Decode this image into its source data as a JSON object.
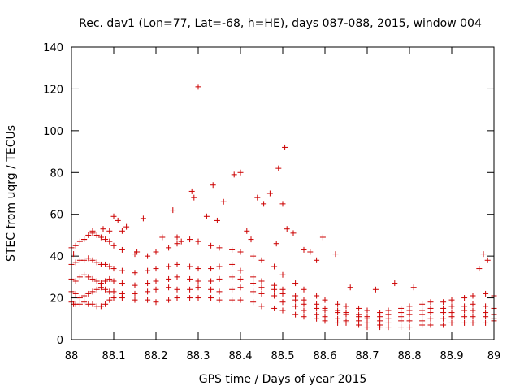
{
  "chart_data": {
    "type": "scatter",
    "title": "Rec. dav1 (Lon=77, Lat=-68, h=HE), days 087-088, 2015, window 004",
    "xlabel": "GPS time / Days of year 2015",
    "ylabel": "STEC from uqrg / TECUs",
    "xlim": [
      88,
      89
    ],
    "ylim": [
      0,
      140
    ],
    "x_ticks": [
      "88",
      "88.1",
      "88.2",
      "88.3",
      "88.4",
      "88.5",
      "88.6",
      "88.7",
      "88.8",
      "88.9",
      "89"
    ],
    "y_ticks": [
      "0",
      "20",
      "40",
      "60",
      "80",
      "100",
      "120",
      "140"
    ],
    "marker": "plus",
    "color": "#cc0000",
    "grid": false,
    "legend": "none",
    "series": [
      {
        "name": "STEC",
        "x": [
          88.0,
          88.005,
          88.01,
          88.02,
          88.03,
          88.04,
          88.05,
          88.06,
          88.07,
          88.08,
          88.09,
          88.1,
          88.12,
          88.15,
          88.18,
          88.2,
          88.23,
          88.25,
          88.28,
          88.3,
          88.33,
          88.35,
          88.38,
          88.4,
          88.43,
          88.45,
          88.48,
          88.5,
          88.53,
          88.55,
          88.58,
          88.6,
          88.63,
          88.65,
          88.68,
          88.7,
          88.73,
          88.75,
          88.78,
          88.8,
          88.83,
          88.85,
          88.88,
          88.9,
          88.93,
          88.95,
          88.98,
          89.0
        ],
        "y": [
          18,
          17,
          17,
          17,
          18,
          17,
          17,
          16,
          16,
          17,
          19,
          20,
          20,
          19,
          19,
          18,
          19,
          20,
          20,
          20,
          20,
          19,
          19,
          19,
          18,
          16,
          15,
          14,
          12,
          11,
          10,
          9,
          8,
          8,
          7,
          6,
          6,
          6,
          6,
          6,
          7,
          7,
          7,
          8,
          8,
          8,
          8,
          9
        ]
      },
      {
        "name": "STEC",
        "x": [
          88.0,
          88.01,
          88.02,
          88.03,
          88.04,
          88.05,
          88.06,
          88.07,
          88.08,
          88.09,
          88.1,
          88.12,
          88.15,
          88.18,
          88.2,
          88.23,
          88.25,
          88.28,
          88.3,
          88.33,
          88.35,
          88.38,
          88.4,
          88.43,
          88.45,
          88.48,
          88.5,
          88.53,
          88.55,
          88.58,
          88.6,
          88.63,
          88.65,
          88.68,
          88.7,
          88.73,
          88.75,
          88.78,
          88.8,
          88.83,
          88.85,
          88.88,
          88.9,
          88.93,
          88.95,
          88.98,
          89.0
        ],
        "y": [
          23,
          22,
          20,
          21,
          22,
          23,
          24,
          25,
          24,
          23,
          23,
          22,
          22,
          23,
          24,
          25,
          24,
          24,
          25,
          24,
          23,
          24,
          25,
          23,
          22,
          21,
          18,
          16,
          14,
          12,
          11,
          10,
          9,
          9,
          8,
          7,
          8,
          9,
          9,
          9,
          10,
          10,
          11,
          11,
          11,
          11,
          10
        ]
      },
      {
        "name": "STEC",
        "x": [
          88.0,
          88.01,
          88.02,
          88.03,
          88.04,
          88.05,
          88.06,
          88.07,
          88.08,
          88.09,
          88.1,
          88.12,
          88.15,
          88.18,
          88.2,
          88.23,
          88.25,
          88.28,
          88.3,
          88.33,
          88.35,
          88.38,
          88.4,
          88.43,
          88.45,
          88.48,
          88.5,
          88.53,
          88.55,
          88.58,
          88.6,
          88.63,
          88.65,
          88.68,
          88.7,
          88.73,
          88.75,
          88.78,
          88.8,
          88.83,
          88.85,
          88.88,
          88.9,
          88.93,
          88.95,
          88.98,
          89.0
        ],
        "y": [
          29,
          28,
          30,
          31,
          30,
          29,
          28,
          27,
          28,
          29,
          28,
          27,
          26,
          27,
          28,
          29,
          30,
          29,
          28,
          28,
          29,
          30,
          29,
          27,
          25,
          24,
          22,
          19,
          17,
          15,
          14,
          13,
          12,
          11,
          10,
          9,
          10,
          11,
          12,
          12,
          13,
          13,
          13,
          14,
          14,
          13,
          12
        ]
      },
      {
        "name": "STEC",
        "x": [
          88.0,
          88.01,
          88.02,
          88.03,
          88.04,
          88.05,
          88.06,
          88.07,
          88.08,
          88.09,
          88.1,
          88.12,
          88.15,
          88.18,
          88.2,
          88.23,
          88.25,
          88.28,
          88.3,
          88.33,
          88.35,
          88.38,
          88.4,
          88.43,
          88.45,
          88.48,
          88.5,
          88.53,
          88.55,
          88.58,
          88.6,
          88.63,
          88.65,
          88.68,
          88.7,
          88.73,
          88.75,
          88.78,
          88.8,
          88.83,
          88.85,
          88.88,
          88.9,
          88.93,
          88.95,
          88.98,
          89.0
        ],
        "y": [
          36,
          37,
          38,
          38,
          39,
          38,
          37,
          36,
          36,
          35,
          34,
          33,
          32,
          33,
          34,
          35,
          36,
          35,
          34,
          34,
          35,
          36,
          33,
          30,
          28,
          26,
          24,
          21,
          19,
          17,
          15,
          14,
          13,
          12,
          11,
          11,
          12,
          13,
          14,
          14,
          15,
          15,
          16,
          16,
          17,
          16,
          15
        ]
      },
      {
        "name": "STEC",
        "x": [
          88.0,
          88.01,
          88.02,
          88.03,
          88.04,
          88.05,
          88.06,
          88.07,
          88.08,
          88.09,
          88.1,
          88.12,
          88.15,
          88.18,
          88.2,
          88.23,
          88.25,
          88.28,
          88.3,
          88.33,
          88.35,
          88.38,
          88.4,
          88.43,
          88.45,
          88.48,
          88.5,
          88.53,
          88.55,
          88.58,
          88.6,
          88.63,
          88.65,
          88.68,
          88.7,
          88.73,
          88.75,
          88.78,
          88.8,
          88.83,
          88.85,
          88.88,
          88.9,
          88.93,
          88.95,
          88.98,
          89.0
        ],
        "y": [
          44,
          45,
          47,
          48,
          50,
          51,
          50,
          49,
          48,
          47,
          45,
          43,
          41,
          40,
          42,
          44,
          46,
          48,
          47,
          45,
          44,
          43,
          42,
          40,
          38,
          35,
          31,
          27,
          24,
          21,
          19,
          17,
          16,
          15,
          14,
          13,
          14,
          15,
          16,
          17,
          18,
          18,
          19,
          20,
          21,
          22,
          21
        ]
      },
      {
        "name": "STEC",
        "x": [
          88.005,
          88.03,
          88.05,
          88.075,
          88.09,
          88.1,
          88.11,
          88.12,
          88.13,
          88.155,
          88.17,
          88.215,
          88.24,
          88.25,
          88.26,
          88.285,
          88.29,
          88.3,
          88.32,
          88.335,
          88.345,
          88.36,
          88.385,
          88.4,
          88.415,
          88.425,
          88.44,
          88.455,
          88.47,
          88.485,
          88.49,
          88.5,
          88.505,
          88.51,
          88.525,
          88.55,
          88.565,
          88.58,
          88.595,
          88.625,
          88.66,
          88.72,
          88.765,
          88.81,
          88.965,
          88.975,
          88.985
        ],
        "y": [
          41,
          48,
          52,
          53,
          52,
          59,
          57,
          52,
          54,
          42,
          58,
          49,
          62,
          49,
          47,
          71,
          68,
          121,
          59,
          74,
          57,
          66,
          79,
          80,
          52,
          48,
          68,
          65,
          70,
          46,
          82,
          65,
          92,
          53,
          51,
          43,
          42,
          38,
          49,
          41,
          25,
          24,
          27,
          25,
          34,
          41,
          38
        ]
      }
    ]
  }
}
